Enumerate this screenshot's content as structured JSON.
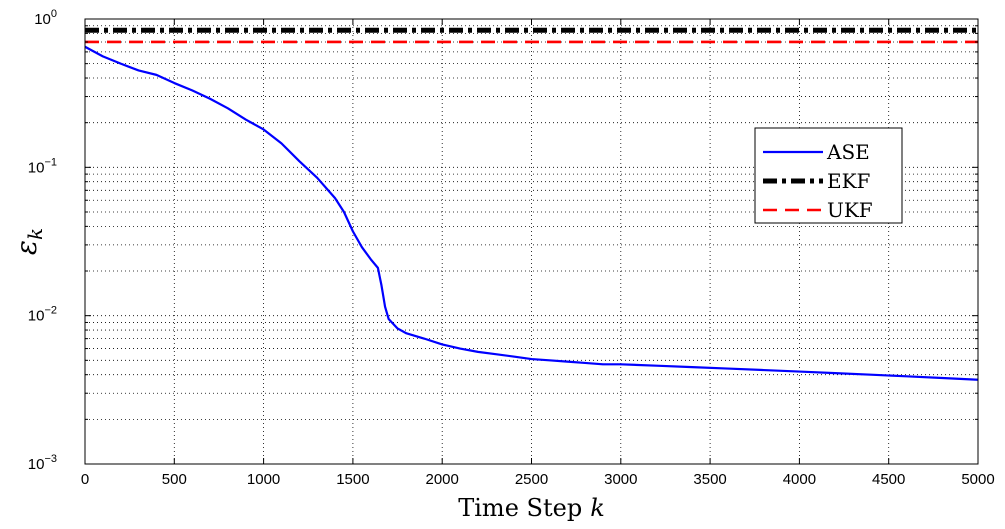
{
  "chart_data": {
    "type": "line",
    "title": "",
    "xlabel": "Time Step",
    "xlabel_var": "k",
    "ylabel": "ε",
    "ylabel_sub": "k",
    "x_ticks": [
      0,
      500,
      1000,
      1500,
      2000,
      2500,
      3000,
      3500,
      4000,
      4500,
      5000
    ],
    "y_ticks": [
      {
        "value": 0.001,
        "base": "10",
        "exp": "−3"
      },
      {
        "value": 0.01,
        "base": "10",
        "exp": "−2"
      },
      {
        "value": 0.1,
        "base": "10",
        "exp": "−1"
      },
      {
        "value": 1,
        "base": "10",
        "exp": "0"
      }
    ],
    "xlim": [
      0,
      5000
    ],
    "ylim": [
      0.001,
      1
    ],
    "yscale": "log",
    "grid": true,
    "legend_position": "upper-right",
    "series": [
      {
        "name": "ASE",
        "color": "#0000ff",
        "style": "solid",
        "x": [
          0,
          100,
          200,
          300,
          400,
          500,
          600,
          700,
          800,
          900,
          1000,
          1100,
          1200,
          1300,
          1400,
          1450,
          1500,
          1550,
          1600,
          1640,
          1660,
          1680,
          1700,
          1750,
          1800,
          1900,
          2000,
          2100,
          2200,
          2300,
          2400,
          2500,
          2600,
          2700,
          2800,
          2900,
          3000,
          3200,
          3400,
          3600,
          3800,
          4000,
          4200,
          4400,
          4600,
          4800,
          5000
        ],
        "y": [
          0.65,
          0.56,
          0.5,
          0.45,
          0.42,
          0.37,
          0.33,
          0.29,
          0.25,
          0.21,
          0.18,
          0.145,
          0.11,
          0.085,
          0.062,
          0.05,
          0.037,
          0.029,
          0.024,
          0.021,
          0.016,
          0.0115,
          0.0095,
          0.0082,
          0.0076,
          0.007,
          0.0064,
          0.006,
          0.0057,
          0.0055,
          0.0053,
          0.0051,
          0.005,
          0.0049,
          0.0048,
          0.0047,
          0.0047,
          0.0046,
          0.0045,
          0.0044,
          0.0043,
          0.0042,
          0.0041,
          0.004,
          0.0039,
          0.0038,
          0.0037
        ]
      },
      {
        "name": "EKF",
        "color": "#000000",
        "style": "dashdot",
        "x": [
          0,
          5000
        ],
        "y": [
          0.84,
          0.84
        ]
      },
      {
        "name": "UKF",
        "color": "#ff0000",
        "style": "dashed",
        "x": [
          0,
          5000
        ],
        "y": [
          0.7,
          0.7
        ]
      }
    ]
  }
}
